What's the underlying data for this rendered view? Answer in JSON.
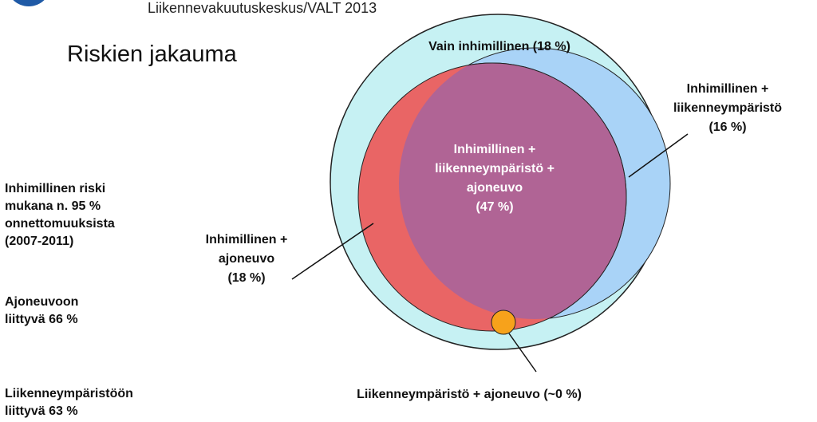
{
  "header": {
    "source": "Liikennevakuutuskeskus/VALT  2013",
    "title": "Riskien jakauma"
  },
  "sidebar": {
    "human": [
      "Inhimillinen riski",
      "mukana n. 95 %",
      "onnettomuuksista",
      "(2007-2011)"
    ],
    "vehicle": [
      "Ajoneuvoon",
      "liittyvä 66 %"
    ],
    "environment": [
      "Liikenneympäristöön",
      "liittyvä 63 %"
    ]
  },
  "diagram": {
    "only_human": "Vain inhimillinen  (18 %)",
    "human_env": [
      "Inhimillinen +",
      "liikenneympäristö",
      "(16 %)"
    ],
    "all_three": [
      "Inhimillinen +",
      "liikenneympäristö +",
      "ajoneuvo",
      "(47 %)"
    ],
    "human_vehicle": [
      "Inhimillinen +",
      "ajoneuvo",
      "(18 %)"
    ],
    "env_vehicle": "Liikenneympäristö + ajoneuvo (~0 %)",
    "colors": {
      "human": "#c6f1f3",
      "environment": "#a9d3f7",
      "vehicle": "#e96565",
      "overlap": "#b06495",
      "small": "#f7a21b"
    }
  }
}
